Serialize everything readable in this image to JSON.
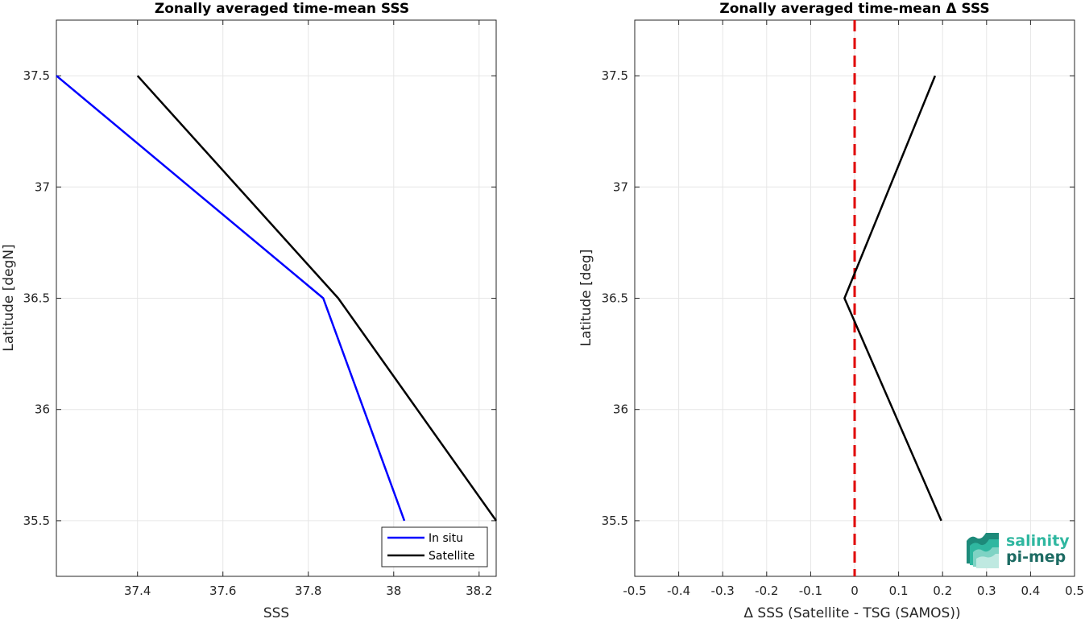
{
  "chart_data": [
    {
      "type": "line",
      "title": "Zonally averaged time-mean SSS",
      "xlabel": "SSS",
      "ylabel": "Latitude [degN]",
      "xlim": [
        37.21,
        38.24
      ],
      "ylim": [
        35.25,
        37.75
      ],
      "xticks": [
        37.4,
        37.6,
        37.8,
        38,
        38.2
      ],
      "xtick_labels": [
        "37.4",
        "37.6",
        "37.8",
        "38",
        "38.2"
      ],
      "yticks": [
        35.5,
        36,
        36.5,
        37,
        37.5
      ],
      "ytick_labels": [
        "35.5",
        "36",
        "36.5",
        "37",
        "37.5"
      ],
      "grid": true,
      "legend": {
        "position": "bottom-right",
        "entries": [
          "In situ",
          "Satellite"
        ]
      },
      "series": [
        {
          "name": "In situ",
          "color": "#0000ff",
          "x": [
            37.21,
            37.835,
            38.025
          ],
          "y": [
            37.5,
            36.5,
            35.5
          ]
        },
        {
          "name": "Satellite",
          "color": "#000000",
          "x": [
            37.4,
            37.87,
            38.24
          ],
          "y": [
            37.5,
            36.5,
            35.5
          ]
        }
      ]
    },
    {
      "type": "line",
      "title": "Zonally averaged time-mean Δ SSS",
      "xlabel": "Δ SSS (Satellite - TSG (SAMOS))",
      "ylabel": "Latitude [deg]",
      "xlim": [
        -0.5,
        0.5
      ],
      "ylim": [
        35.25,
        37.75
      ],
      "xticks": [
        -0.5,
        -0.4,
        -0.3,
        -0.2,
        -0.1,
        0,
        0.1,
        0.2,
        0.3,
        0.4,
        0.5
      ],
      "xtick_labels": [
        "-0.5",
        "-0.4",
        "-0.3",
        "-0.2",
        "-0.1",
        "0",
        "0.1",
        "0.2",
        "0.3",
        "0.4",
        "0.5"
      ],
      "yticks": [
        35.5,
        36,
        36.5,
        37,
        37.5
      ],
      "ytick_labels": [
        "35.5",
        "36",
        "36.5",
        "37",
        "37.5"
      ],
      "grid": true,
      "reference_line": {
        "x": 0,
        "color": "#e00000",
        "style": "dashed"
      },
      "series": [
        {
          "color": "#000000",
          "x": [
            0.183,
            -0.023,
            0.197
          ],
          "y": [
            37.5,
            36.5,
            35.5
          ]
        }
      ]
    }
  ],
  "logo": {
    "line1": "salinity",
    "line2": "pi-mep",
    "color1": "#2fb7a0",
    "color2": "#1d6b63"
  }
}
